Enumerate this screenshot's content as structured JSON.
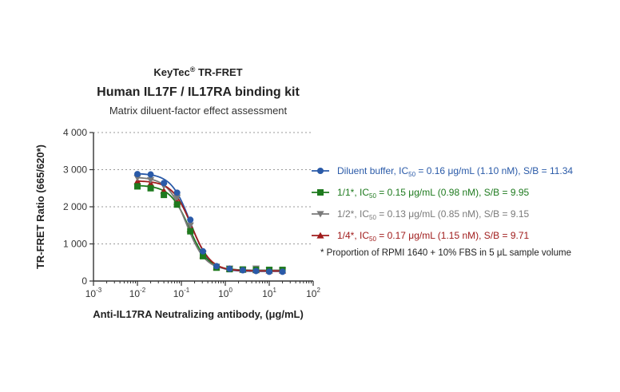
{
  "chart_data": {
    "type": "line",
    "title_brand": "KeyTec",
    "title_brand_sup": "®",
    "title_brand_suffix": " TR-FRET",
    "title": "Human IL17F / IL17RA binding kit",
    "subtitle": "Matrix diluent-factor effect assessment",
    "xlabel": "Anti-IL17RA Neutralizing antibody, (μg/mL)",
    "ylabel": "TR-FRET Ratio (665/620*)",
    "xscale": "log",
    "xlim": [
      0.001,
      100
    ],
    "ylim": [
      0,
      4000
    ],
    "x_ticks": [
      {
        "base": "10",
        "exp": "-3"
      },
      {
        "base": "10",
        "exp": "-2"
      },
      {
        "base": "10",
        "exp": "-1"
      },
      {
        "base": "10",
        "exp": "0"
      },
      {
        "base": "10",
        "exp": "1"
      },
      {
        "base": "10",
        "exp": "2"
      }
    ],
    "y_ticks": [
      "0",
      "1 000",
      "2 000",
      "3 000",
      "4 000"
    ],
    "y_tick_values": [
      0,
      1000,
      2000,
      3000,
      4000
    ],
    "grid": "dotted horizontal",
    "x": [
      0.01,
      0.02,
      0.04,
      0.08,
      0.16,
      0.31,
      0.63,
      1.25,
      2.5,
      5,
      10,
      20
    ],
    "series": [
      {
        "name": "Diluent buffer",
        "prefix": "Diluent buffer, IC",
        "sub": "50",
        "suffix": " = 0.16 μg/mL (1.10 nM), S/B = 11.34",
        "color": "#2a5aa8",
        "marker": "circle",
        "values": [
          2880,
          2870,
          2640,
          2380,
          1650,
          800,
          400,
          330,
          290,
          270,
          250,
          250
        ],
        "fit": {
          "bottom": 260,
          "top": 2900,
          "ic50": 0.16,
          "hill": 2.0
        }
      },
      {
        "name": "1/1*",
        "prefix": "1/1*, IC",
        "sub": "50",
        "suffix": " = 0.15 μg/mL (0.98 nM), S/B = 9.95",
        "color": "#1e7a1e",
        "marker": "square",
        "values": [
          2550,
          2500,
          2320,
          2060,
          1340,
          670,
          360,
          320,
          310,
          300,
          300,
          300
        ],
        "fit": {
          "bottom": 290,
          "top": 2580,
          "ic50": 0.15,
          "hill": 2.0
        }
      },
      {
        "name": "1/2*",
        "prefix": "1/2*, IC",
        "sub": "50",
        "suffix": " = 0.13 μg/mL (0.85 nM), S/B = 9.15",
        "color": "#7a7a7a",
        "marker": "triangle-down",
        "values": [
          2780,
          2720,
          2560,
          2250,
          1500,
          740,
          390,
          340,
          300,
          340,
          290,
          280
        ],
        "fit": {
          "bottom": 290,
          "top": 2800,
          "ic50": 0.13,
          "hill": 2.0
        }
      },
      {
        "name": "1/4*",
        "prefix": "1/4*, IC",
        "sub": "50",
        "suffix": " = 0.17 μg/mL (1.15 nM), S/B = 9.71",
        "color": "#a01c1c",
        "marker": "triangle-up",
        "values": [
          2680,
          2620,
          2430,
          2130,
          1390,
          690,
          370,
          330,
          300,
          290,
          280,
          280
        ],
        "fit": {
          "bottom": 270,
          "top": 2700,
          "ic50": 0.17,
          "hill": 2.0
        }
      }
    ],
    "note": "*  Proportion of RPMI 1640 + 10% FBS in 5 μL sample volume"
  }
}
